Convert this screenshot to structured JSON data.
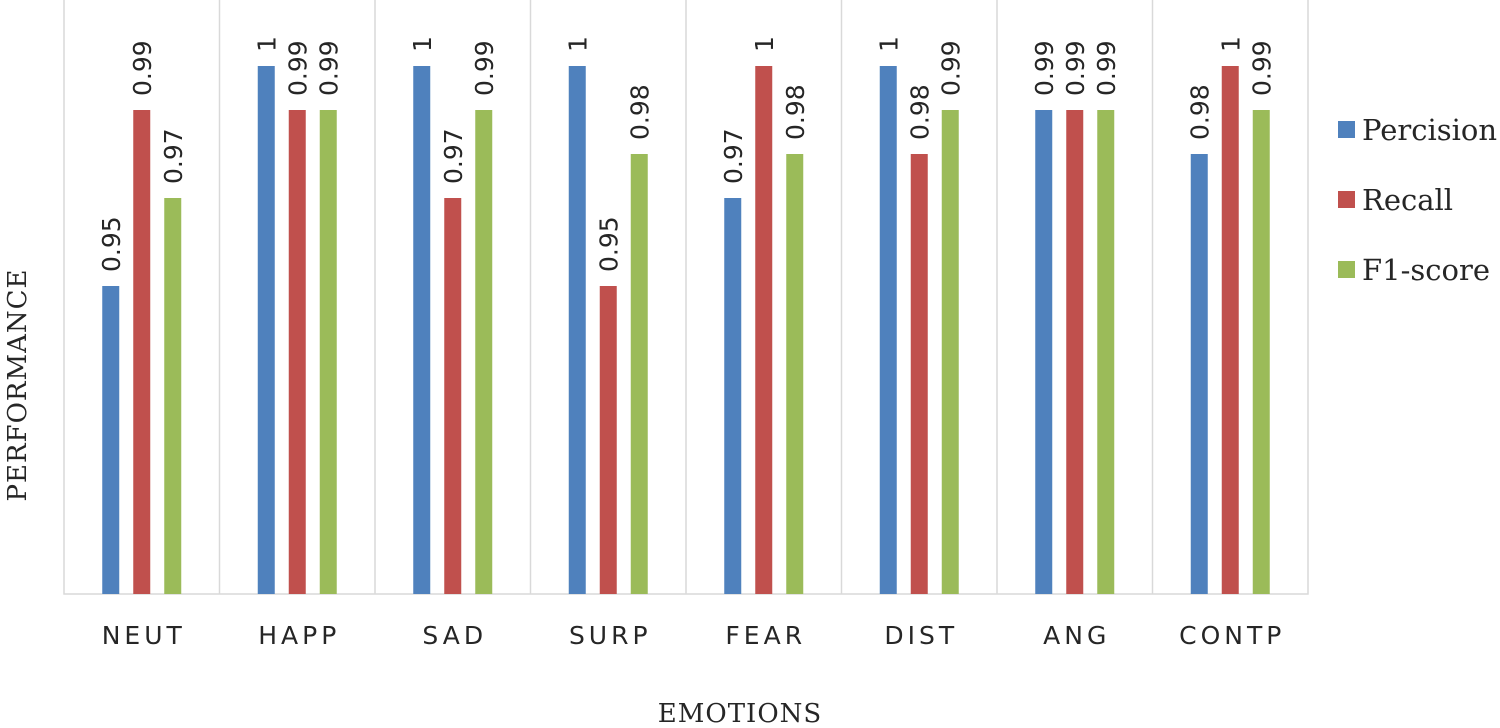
{
  "chart_data": {
    "type": "bar",
    "title": "",
    "xlabel": "EMOTIONS",
    "ylabel": "PERFORMANCE",
    "categories": [
      "NEUT",
      "HAPP",
      "SAD",
      "SURP",
      "FEAR",
      "DIST",
      "ANG",
      "CONTP"
    ],
    "series": [
      {
        "name": "Percision",
        "color": "#4F81BD",
        "values": [
          0.95,
          1,
          1,
          1,
          0.97,
          1,
          0.99,
          0.98
        ]
      },
      {
        "name": "Recall",
        "color": "#C0504D",
        "values": [
          0.99,
          0.99,
          0.97,
          0.95,
          1,
          0.98,
          0.99,
          1
        ]
      },
      {
        "name": "F1-score",
        "color": "#9BBB59",
        "values": [
          0.97,
          0.99,
          0.99,
          0.98,
          0.98,
          0.99,
          0.99,
          0.99
        ]
      }
    ],
    "data_labels": [
      [
        "0.95",
        "0.99",
        "0.97"
      ],
      [
        "1",
        "0.99",
        "0.99"
      ],
      [
        "1",
        "0.97",
        "0.99"
      ],
      [
        "1",
        "0.95",
        "0.98"
      ],
      [
        "0.97",
        "1",
        "0.98"
      ],
      [
        "1",
        "0.98",
        "0.99"
      ],
      [
        "0.99",
        "0.99",
        "0.99"
      ],
      [
        "0.98",
        "1",
        "0.99"
      ]
    ],
    "ylim": [
      0.88,
      1.0
    ],
    "grid": "vertical category separators",
    "legend_position": "right"
  }
}
